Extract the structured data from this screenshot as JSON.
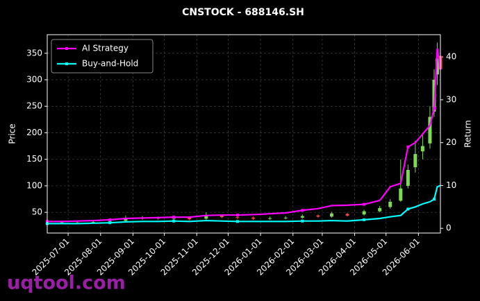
{
  "chart_data": {
    "type": "candlestick",
    "title": "CNSTOCK - 688146.SH",
    "ylabel": "Price",
    "y2label": "Return",
    "watermark": "uqtool.com",
    "x": [
      "2025-06-11",
      "2025-06-25",
      "2025-07-10",
      "2025-07-25",
      "2025-08-10",
      "2025-08-25",
      "2025-09-10",
      "2025-09-25",
      "2025-10-10",
      "2025-10-25",
      "2025-11-10",
      "2025-11-25",
      "2025-12-10",
      "2025-12-25",
      "2026-01-10",
      "2026-01-25",
      "2026-02-10",
      "2026-02-25",
      "2026-03-10",
      "2026-03-25",
      "2026-04-10",
      "2026-04-25",
      "2026-05-05",
      "2026-05-15",
      "2026-05-22",
      "2026-05-29",
      "2026-06-05",
      "2026-06-12",
      "2026-06-16",
      "2026-06-19",
      "2026-06-22"
    ],
    "open": [
      29,
      30,
      31,
      30,
      32,
      34,
      39,
      40,
      38,
      40,
      38,
      44,
      41,
      40,
      38,
      39,
      40,
      44,
      42,
      47,
      46,
      52,
      60,
      72,
      100,
      135,
      165,
      180,
      240,
      310,
      345
    ],
    "high": [
      32,
      33,
      33,
      34,
      35,
      44,
      43,
      42,
      43,
      42,
      50,
      46,
      43,
      42,
      42,
      43,
      46,
      46,
      51,
      49,
      55,
      62,
      75,
      150,
      140,
      185,
      200,
      250,
      320,
      370,
      365
    ],
    "low": [
      27,
      28,
      28,
      29,
      30,
      32,
      36,
      36,
      36,
      35,
      36,
      39,
      37,
      36,
      36,
      37,
      38,
      40,
      40,
      42,
      44,
      50,
      57,
      70,
      95,
      125,
      150,
      170,
      230,
      290,
      280
    ],
    "close": [
      30,
      31,
      30,
      32,
      33,
      38,
      40,
      38,
      40,
      37,
      45,
      41,
      40,
      38,
      39,
      40,
      43,
      42,
      48,
      44,
      52,
      58,
      70,
      95,
      130,
      160,
      175,
      230,
      300,
      340,
      320
    ],
    "up_color": "#7ed957",
    "down_color": "#ff4d4d",
    "series": [
      {
        "name": "AI Strategy",
        "color": "#ff00ff",
        "axis": "y2",
        "values": [
          1.6,
          1.6,
          1.7,
          1.8,
          2.0,
          2.3,
          2.4,
          2.5,
          2.6,
          2.6,
          3.0,
          3.1,
          3.1,
          3.2,
          3.4,
          3.6,
          4.2,
          4.6,
          5.3,
          5.4,
          5.6,
          6.5,
          9.7,
          10.5,
          19,
          20,
          22,
          24,
          28,
          42,
          37
        ]
      },
      {
        "name": "Buy-and-Hold",
        "color": "#00ffff",
        "axis": "y2",
        "values": [
          1.1,
          1.1,
          1.1,
          1.2,
          1.3,
          1.5,
          1.6,
          1.6,
          1.7,
          1.6,
          1.8,
          1.7,
          1.6,
          1.6,
          1.6,
          1.6,
          1.7,
          1.7,
          1.8,
          1.7,
          2.0,
          2.3,
          2.7,
          3.0,
          4.5,
          5.0,
          5.7,
          6.2,
          6.8,
          9.7,
          10
        ]
      }
    ],
    "xlim": [
      "2025-06-11",
      "2026-06-22"
    ],
    "xticks": [
      "2025-07-01",
      "2025-08-01",
      "2025-09-01",
      "2025-10-01",
      "2025-11-01",
      "2025-12-01",
      "2026-01-01",
      "2026-02-01",
      "2026-03-01",
      "2026-04-01",
      "2026-05-01",
      "2026-06-01"
    ],
    "ylim": [
      11,
      385
    ],
    "yticks": [
      50,
      100,
      150,
      200,
      250,
      300,
      350
    ],
    "y2lim": [
      -1.1,
      45.2
    ],
    "y2ticks": [
      0,
      10,
      20,
      30,
      40
    ],
    "grid": true,
    "legend": "upper left"
  }
}
